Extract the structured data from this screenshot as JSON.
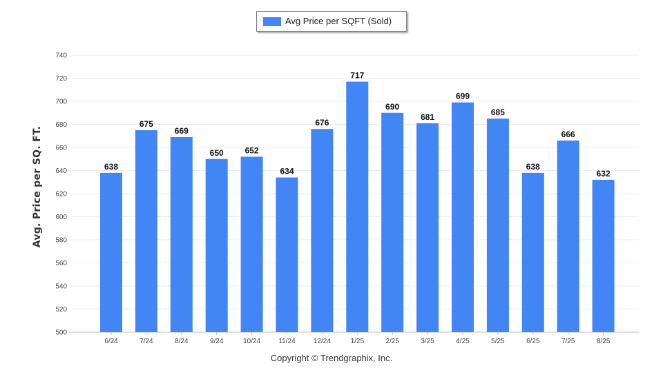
{
  "legend": {
    "label": "Avg Price per SQFT (Sold)"
  },
  "footer": {
    "copyright": "Copyright © Trendgraphix, Inc."
  },
  "chart_data": {
    "type": "bar",
    "title": "",
    "xlabel": "",
    "ylabel": "Avg. Price per SQ. FT.",
    "categories": [
      "6/24",
      "7/24",
      "8/24",
      "9/24",
      "10/24",
      "11/24",
      "12/24",
      "1/25",
      "2/25",
      "3/25",
      "4/25",
      "5/25",
      "6/25",
      "7/25",
      "8/25"
    ],
    "series": [
      {
        "name": "Avg Price per SQFT (Sold)",
        "color": "#4285f4",
        "values": [
          638,
          675,
          669,
          650,
          652,
          634,
          676,
          717,
          690,
          681,
          699,
          685,
          638,
          666,
          632
        ]
      }
    ],
    "ylim": [
      500,
      740
    ],
    "yticks": [
      500,
      520,
      540,
      560,
      580,
      600,
      620,
      640,
      660,
      680,
      700,
      720,
      740
    ],
    "grid": true,
    "legend_position": "top-center",
    "data_labels": true
  }
}
